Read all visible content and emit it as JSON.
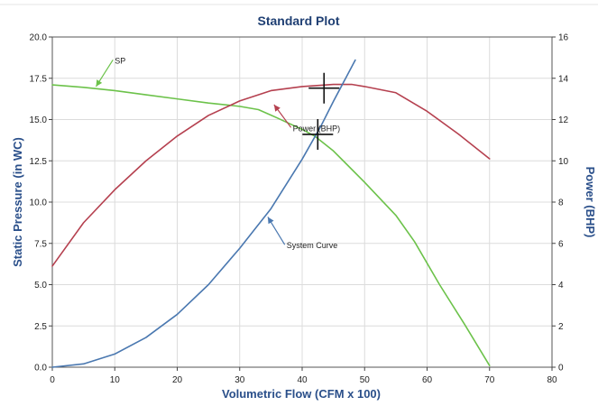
{
  "chart_data": {
    "type": "line",
    "title": "Standard Plot",
    "xlabel": "Volumetric Flow (CFM x 100)",
    "ylabel_left": "Static Pressure (in WC)",
    "ylabel_right": "Power (BHP)",
    "xlim": [
      0,
      80
    ],
    "ylim_left": [
      0,
      20
    ],
    "ylim_right": [
      0,
      16
    ],
    "x_ticks": [
      0,
      10,
      20,
      30,
      40,
      50,
      60,
      70,
      80
    ],
    "x_tick_labels": [
      "0",
      "10",
      "20",
      "30",
      "40",
      "50",
      "60",
      "70",
      "80"
    ],
    "y_left_ticks": [
      0,
      2.5,
      5,
      7.5,
      10,
      12.5,
      15,
      17.5,
      20
    ],
    "y_left_tick_labels": [
      "0.0",
      "2.5",
      "5.0",
      "7.5",
      "10.0",
      "12.5",
      "15.0",
      "17.5",
      "20.0"
    ],
    "y_right_ticks": [
      0,
      2,
      4,
      6,
      8,
      10,
      12,
      14,
      16
    ],
    "y_right_tick_labels": [
      "0",
      "2",
      "4",
      "6",
      "8",
      "10",
      "12",
      "14",
      "16"
    ],
    "grid": true,
    "series": [
      {
        "name": "SP",
        "axis": "left",
        "color": "#6cc24a",
        "x": [
          0,
          5,
          10,
          15,
          20,
          25,
          30,
          33,
          36,
          40,
          42,
          45,
          50,
          55,
          58,
          62,
          66,
          70
        ],
        "y": [
          17.1,
          16.95,
          16.75,
          16.5,
          16.25,
          16.0,
          15.8,
          15.6,
          15.1,
          14.4,
          14.0,
          13.1,
          11.2,
          9.2,
          7.6,
          5.0,
          2.6,
          0.1
        ]
      },
      {
        "name": "Power (BHP)",
        "axis": "right",
        "color": "#b5404f",
        "x": [
          0,
          5,
          10,
          15,
          20,
          25,
          30,
          35,
          40,
          45,
          48,
          50,
          55,
          60,
          65,
          70
        ],
        "y": [
          4.9,
          7.0,
          8.6,
          10.0,
          11.2,
          12.2,
          12.9,
          13.4,
          13.6,
          13.7,
          13.7,
          13.6,
          13.3,
          12.4,
          11.3,
          10.1
        ]
      },
      {
        "name": "System Curve",
        "axis": "left",
        "color": "#4a78b0",
        "x": [
          0,
          5,
          10,
          15,
          20,
          25,
          30,
          35,
          40,
          43,
          45,
          48.5
        ],
        "y": [
          0.0,
          0.2,
          0.8,
          1.8,
          3.2,
          5.0,
          7.2,
          9.6,
          12.6,
          14.6,
          16.1,
          18.6
        ]
      }
    ],
    "annotations": [
      {
        "text": "SP",
        "color": "#6cc24a",
        "x": 10,
        "y": 18.4,
        "arrow_to_x": 7,
        "arrow_to_y": 17.0
      },
      {
        "text": "Power (BHP)",
        "color": "#b5404f",
        "x": 38.5,
        "y": 14.3,
        "arrow_to_x": 35.5,
        "arrow_to_y": 15.9
      },
      {
        "text": "System Curve",
        "color": "#4a78b0",
        "x": 37.5,
        "y": 7.2,
        "arrow_to_x": 34.5,
        "arrow_to_y": 9.1
      }
    ],
    "operating_points": [
      {
        "x": 43.5,
        "y": 16.9
      },
      {
        "x": 42.5,
        "y": 14.1
      }
    ]
  }
}
